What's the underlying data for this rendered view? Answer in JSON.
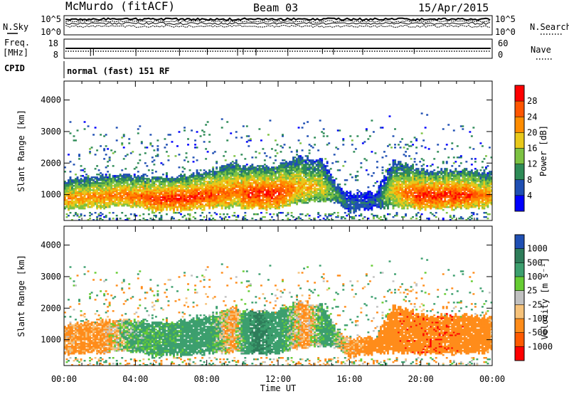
{
  "header": {
    "station": "McMurdo (fitACF)",
    "beam": "Beam 03",
    "date": "15/Apr/2015"
  },
  "noise_panel": {
    "left_label": "N.Sky",
    "right_label": "N.Search",
    "left_ticks": [
      "10^5",
      "10^0"
    ],
    "right_ticks": [
      "10^5",
      "10^0"
    ]
  },
  "freq_panel": {
    "left_label_line1": "Freq.",
    "left_label_line2": "[MHz]",
    "right_label": "Nave",
    "left_ticks": [
      "18",
      "8"
    ],
    "right_ticks": [
      "60",
      "0"
    ]
  },
  "cpid_panel": {
    "label": "CPID",
    "text": "normal (fast) 151 RF"
  },
  "x_axis": {
    "label": "Time UT",
    "ticks": [
      "00:00",
      "04:00",
      "08:00",
      "12:00",
      "16:00",
      "20:00",
      "00:00"
    ]
  },
  "colors": {
    "power_scale": [
      "#0000ff",
      "#1f4fb3",
      "#2e8b57",
      "#7cc242",
      "#e8c81a",
      "#ff8c00",
      "#ff5500",
      "#ff0000"
    ],
    "velocity_scale": [
      "#1f4fb3",
      "#2e7d5a",
      "#3c9f6e",
      "#66cc33",
      "#c0c0c0",
      "#f6c27a",
      "#ff8c1a",
      "#ff5a00",
      "#ff0000"
    ]
  },
  "chart_data": [
    {
      "type": "heatmap",
      "panel": "power",
      "xlabel": "",
      "ylabel": "Slant Range [km]",
      "yticks": [
        "1000",
        "2000",
        "3000",
        "4000"
      ],
      "ylim": [
        180,
        4600
      ],
      "xlim_hours": [
        0,
        24
      ],
      "colorbar": {
        "label": "Power [dB]",
        "ticks": [
          "28",
          "24",
          "20",
          "16",
          "12",
          "8",
          "4"
        ],
        "range": [
          0,
          32
        ]
      },
      "profile": [
        {
          "t": 0,
          "lo": 600,
          "hi": 1400,
          "core": 23
        },
        {
          "t": 1.5,
          "lo": 600,
          "hi": 1500,
          "core": 23
        },
        {
          "t": 3,
          "lo": 650,
          "hi": 1500,
          "core": 24
        },
        {
          "t": 4,
          "lo": 650,
          "hi": 1500,
          "core": 25
        },
        {
          "t": 5,
          "lo": 550,
          "hi": 1450,
          "core": 28
        },
        {
          "t": 6.5,
          "lo": 550,
          "hi": 1500,
          "core": 29
        },
        {
          "t": 8,
          "lo": 600,
          "hi": 1600,
          "core": 28
        },
        {
          "t": 9.5,
          "lo": 650,
          "hi": 1900,
          "core": 24
        },
        {
          "t": 10.5,
          "lo": 600,
          "hi": 1800,
          "core": 29
        },
        {
          "t": 12,
          "lo": 600,
          "hi": 1800,
          "core": 29
        },
        {
          "t": 13,
          "lo": 750,
          "hi": 2100,
          "core": 22
        },
        {
          "t": 14.5,
          "lo": 850,
          "hi": 2000,
          "core": 18
        },
        {
          "t": 15.2,
          "lo": 800,
          "hi": 1300,
          "core": 12
        },
        {
          "t": 16,
          "lo": 500,
          "hi": 900,
          "core": 8
        },
        {
          "t": 17.5,
          "lo": 600,
          "hi": 1000,
          "core": 7
        },
        {
          "t": 18.5,
          "lo": 650,
          "hi": 2000,
          "core": 20
        },
        {
          "t": 20,
          "lo": 600,
          "hi": 1700,
          "core": 29
        },
        {
          "t": 22,
          "lo": 600,
          "hi": 1700,
          "core": 29
        },
        {
          "t": 24,
          "lo": 650,
          "hi": 1600,
          "core": 23
        }
      ]
    },
    {
      "type": "heatmap",
      "panel": "velocity",
      "xlabel": "Time UT",
      "ylabel": "Slant Range [km]",
      "yticks": [
        "1000",
        "2000",
        "3000",
        "4000"
      ],
      "ylim": [
        180,
        4600
      ],
      "xlim_hours": [
        0,
        24
      ],
      "colorbar": {
        "label": "Velocity [m s⁻¹]",
        "ticks": [
          "1000",
          "500",
          "100",
          "25",
          "-25",
          "-100",
          "-500",
          "-1000"
        ],
        "range": [
          -1000,
          1000
        ]
      },
      "profile": [
        {
          "t": 0,
          "lo": 600,
          "hi": 1400,
          "vel": -150
        },
        {
          "t": 2,
          "lo": 600,
          "hi": 1500,
          "vel": -200
        },
        {
          "t": 4,
          "lo": 650,
          "hi": 1500,
          "vel": 150
        },
        {
          "t": 6,
          "lo": 600,
          "hi": 1500,
          "vel": 200
        },
        {
          "t": 8,
          "lo": 600,
          "hi": 1600,
          "vel": 250
        },
        {
          "t": 9.5,
          "lo": 650,
          "hi": 1900,
          "vel": -150
        },
        {
          "t": 10.8,
          "lo": 600,
          "hi": 1900,
          "vel": 600
        },
        {
          "t": 12,
          "lo": 700,
          "hi": 1900,
          "vel": 300
        },
        {
          "t": 13.5,
          "lo": 800,
          "hi": 2100,
          "vel": -200
        },
        {
          "t": 14.7,
          "lo": 850,
          "hi": 2000,
          "vel": 250
        },
        {
          "t": 16,
          "lo": 500,
          "hi": 900,
          "vel": -150
        },
        {
          "t": 18.5,
          "lo": 650,
          "hi": 2100,
          "vel": -350
        },
        {
          "t": 20.5,
          "lo": 600,
          "hi": 1800,
          "vel": -400
        },
        {
          "t": 22.5,
          "lo": 600,
          "hi": 1700,
          "vel": -350
        },
        {
          "t": 24,
          "lo": 650,
          "hi": 1600,
          "vel": -200
        }
      ]
    }
  ]
}
